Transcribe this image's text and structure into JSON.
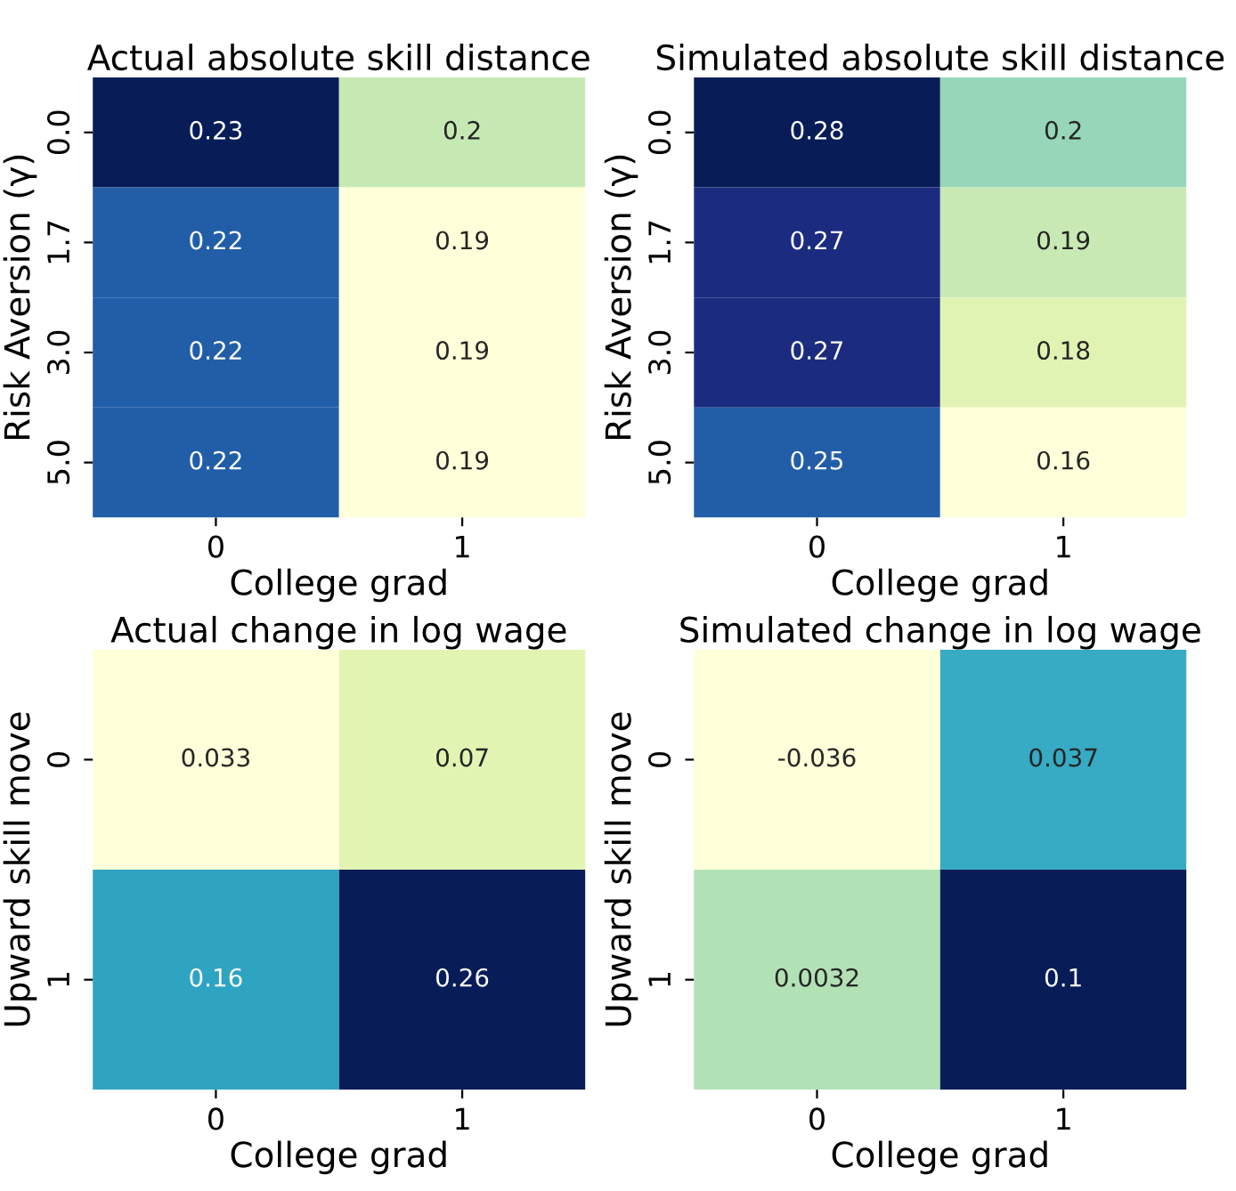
{
  "chart_data": [
    {
      "type": "heatmap",
      "title": "Actual absolute skill distance",
      "xlabel": "College grad",
      "ylabel": "Risk Aversion (γ)",
      "categories": [
        "0",
        "1"
      ],
      "y_categories": [
        "0.0",
        "1.7",
        "3.0",
        "5.0"
      ],
      "cells": [
        [
          0.23,
          0.2
        ],
        [
          0.22,
          0.19
        ],
        [
          0.22,
          0.19
        ],
        [
          0.22,
          0.19
        ]
      ],
      "data_labels": true
    },
    {
      "type": "heatmap",
      "title": "Simulated absolute skill distance",
      "xlabel": "College grad",
      "ylabel": "Risk Aversion (γ)",
      "categories": [
        "0",
        "1"
      ],
      "y_categories": [
        "0.0",
        "1.7",
        "3.0",
        "5.0"
      ],
      "cells": [
        [
          0.28,
          0.2
        ],
        [
          0.27,
          0.19
        ],
        [
          0.27,
          0.18
        ],
        [
          0.25,
          0.16
        ]
      ],
      "data_labels": true
    },
    {
      "type": "heatmap",
      "title": "Actual change in log wage",
      "xlabel": "College grad",
      "ylabel": "Upward skill move",
      "categories": [
        "0",
        "1"
      ],
      "y_categories": [
        "0",
        "1"
      ],
      "cells": [
        [
          0.033,
          0.07
        ],
        [
          0.16,
          0.26
        ]
      ],
      "data_labels": true
    },
    {
      "type": "heatmap",
      "title": "Simulated change in log wage",
      "xlabel": "College grad",
      "ylabel": "Upward skill move",
      "categories": [
        "0",
        "1"
      ],
      "y_categories": [
        "0",
        "1"
      ],
      "cells": [
        [
          -0.036,
          0.037
        ],
        [
          0.0032,
          0.1
        ]
      ],
      "data_labels": true
    }
  ]
}
